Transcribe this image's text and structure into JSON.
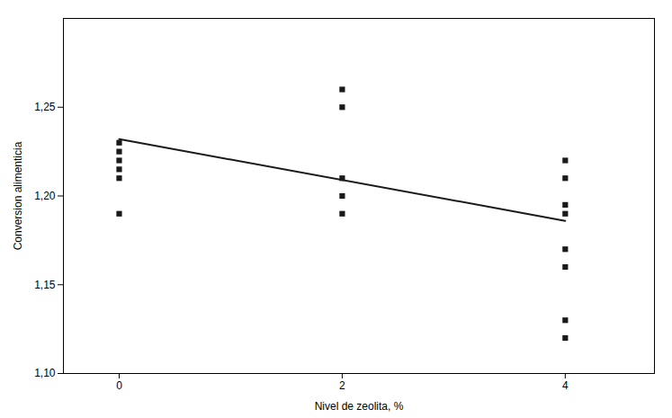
{
  "chart_data": {
    "type": "scatter",
    "xlabel": "Nivel de zeolita, %",
    "ylabel": "Conversion alimenticia",
    "xlim": [
      -0.5,
      4.8
    ],
    "ylim": [
      1.1,
      1.3
    ],
    "xticks": [
      0,
      2,
      4
    ],
    "yticks": [
      {
        "value": 1.1,
        "label": "1,10"
      },
      {
        "value": 1.15,
        "label": "1,15"
      },
      {
        "value": 1.2,
        "label": "1,20"
      },
      {
        "value": 1.25,
        "label": "1,25"
      }
    ],
    "grid": false,
    "series": [
      {
        "type": "scatter",
        "color": "#1a1a1a",
        "marker": "square",
        "x": [
          0,
          0,
          0,
          0,
          0,
          0
        ],
        "values": [
          1.23,
          1.225,
          1.22,
          1.215,
          1.21,
          1.19
        ]
      },
      {
        "type": "scatter",
        "color": "#1a1a1a",
        "marker": "square",
        "x": [
          2,
          2,
          2,
          2,
          2
        ],
        "values": [
          1.26,
          1.25,
          1.21,
          1.2,
          1.19
        ]
      },
      {
        "type": "scatter",
        "color": "#1a1a1a",
        "marker": "square",
        "x": [
          4,
          4,
          4,
          4,
          4,
          4,
          4,
          4
        ],
        "values": [
          1.22,
          1.21,
          1.195,
          1.19,
          1.17,
          1.16,
          1.13,
          1.12
        ]
      },
      {
        "type": "line",
        "color": "#1a1a1a",
        "x": [
          0,
          4
        ],
        "values": [
          1.232,
          1.186
        ]
      }
    ]
  }
}
